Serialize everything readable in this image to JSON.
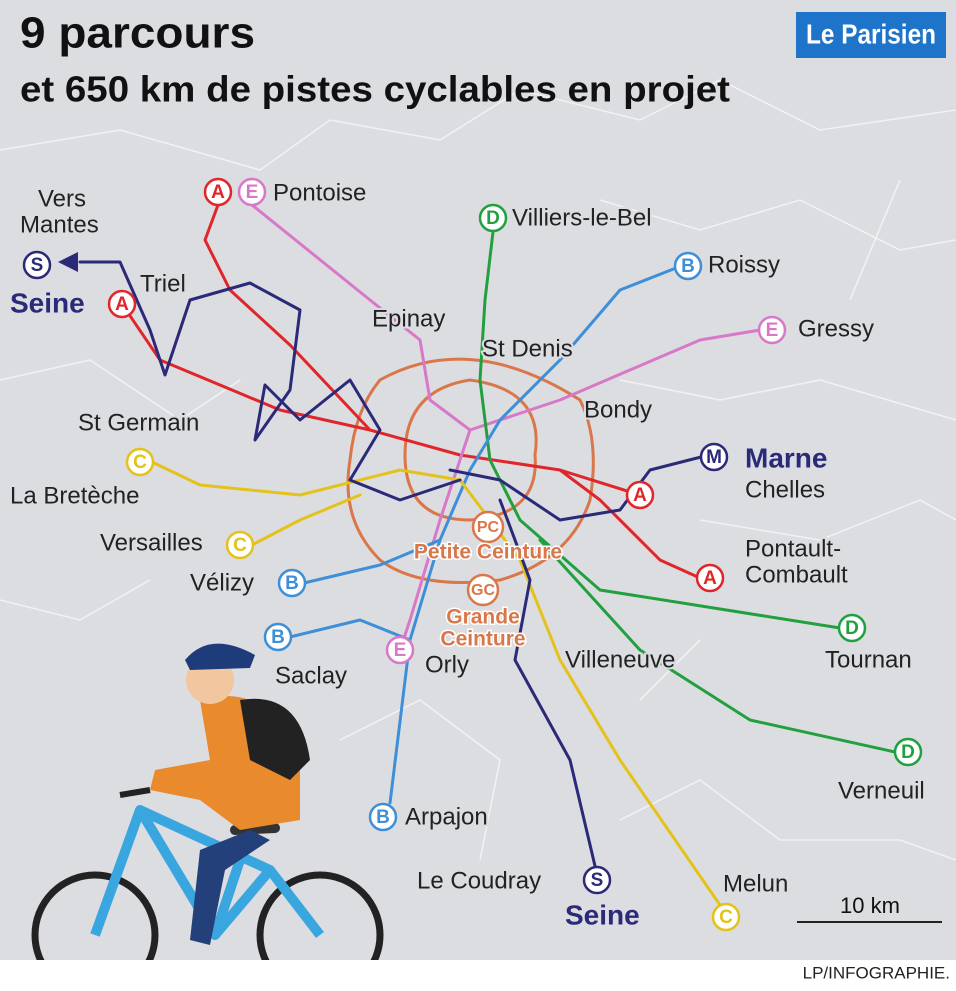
{
  "header": {
    "title": "9 parcours",
    "subtitle": "et 650 km de pistes cyclables en projet",
    "logo": "Le Parisien"
  },
  "places": [
    "Vers",
    "Mantes",
    "Seine",
    "Triel",
    "Pontoise",
    "Villiers-le-Bel",
    "Roissy",
    "Epinay",
    "St Denis",
    "Gressy",
    "Bondy",
    "St Germain",
    "Marne",
    "Chelles",
    "La Bretèche",
    "Versailles",
    "Pontault-",
    "Combault",
    "Vélizy",
    "Saclay",
    "Orly",
    "Villeneuve",
    "Tournan",
    "Verneuil",
    "Arpajon",
    "Le Coudray",
    "Seine",
    "Melun"
  ],
  "badges": [
    "A",
    "E",
    "D",
    "B",
    "S",
    "A",
    "E",
    "C",
    "M",
    "A",
    "C",
    "A",
    "B",
    "B",
    "D",
    "E",
    "D",
    "B",
    "S",
    "C"
  ],
  "ceintures": {
    "pc_badge": "PC",
    "pc_label": "Petite Ceinture",
    "gc_badge": "GC",
    "gc_label": [
      "Grande",
      "Ceinture"
    ]
  },
  "scale": "10 km",
  "credit": "LP/INFOGRAPHIE."
}
